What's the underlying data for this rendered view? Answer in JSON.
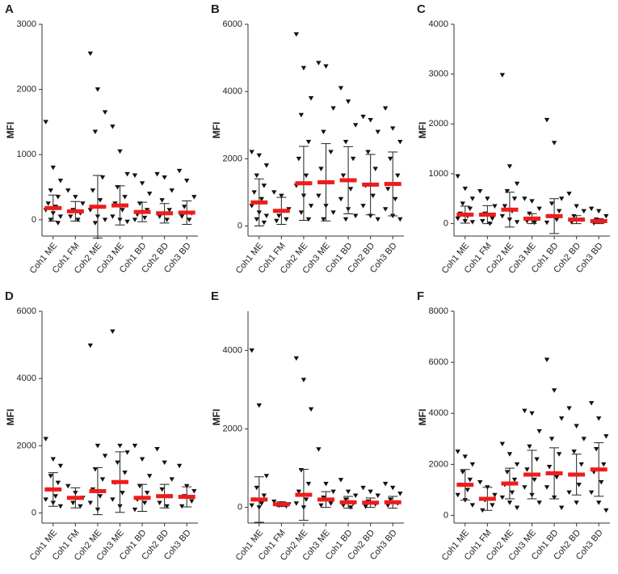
{
  "chart_data": [
    {
      "type": "dotplot",
      "label": "A",
      "ylabel": "MFI",
      "categories": [
        "Coh1 ME",
        "Coh1 FM",
        "Coh2 ME",
        "Coh3 ME",
        "Coh1 BD",
        "Coh2 BD",
        "Coh3 BD"
      ],
      "ylim": [
        -250,
        3000
      ],
      "yticks": [
        0,
        1000,
        2000,
        3000
      ],
      "color": "#111111",
      "mean_color": "#ee1c1c",
      "points": [
        [
          1500,
          800,
          600,
          450,
          350,
          250,
          200,
          150,
          100,
          50,
          0,
          -50
        ],
        [
          450,
          350,
          250,
          150,
          100,
          50,
          0
        ],
        [
          2550,
          2000,
          1650,
          1350,
          650,
          450,
          300,
          150,
          50,
          0,
          -50
        ],
        [
          1430,
          1050,
          700,
          500,
          350,
          250,
          150,
          50,
          0,
          -30
        ],
        [
          680,
          560,
          400,
          250,
          150,
          80,
          30,
          0
        ],
        [
          700,
          650,
          450,
          300,
          150,
          50,
          0
        ],
        [
          750,
          600,
          350,
          200,
          100,
          50,
          0
        ]
      ],
      "means": [
        180,
        130,
        200,
        220,
        120,
        100,
        110
      ],
      "sd": [
        200,
        150,
        480,
        300,
        150,
        150,
        180
      ]
    },
    {
      "type": "dotplot",
      "label": "B",
      "ylabel": "MFI",
      "categories": [
        "Coh1 ME",
        "Coh1 FM",
        "Coh2 ME",
        "Coh3 ME",
        "Coh1 BD",
        "Coh2 BD",
        "Coh3 BD"
      ],
      "ylim": [
        -300,
        6000
      ],
      "yticks": [
        0,
        2000,
        4000,
        6000
      ],
      "color": "#111111",
      "mean_color": "#ee1c1c",
      "points": [
        [
          2200,
          2100,
          1800,
          1500,
          1200,
          1000,
          800,
          600,
          400,
          300,
          200,
          100
        ],
        [
          1000,
          900,
          500,
          300,
          200,
          150
        ],
        [
          5700,
          4700,
          3800,
          3300,
          2500,
          2000,
          1500,
          1200,
          900,
          600,
          400,
          200
        ],
        [
          4850,
          4750,
          3500,
          2800,
          2200,
          1700,
          1300,
          900,
          600,
          400,
          200
        ],
        [
          4100,
          3700,
          3000,
          2500,
          2000,
          1500,
          1100,
          800,
          500,
          300,
          200
        ],
        [
          3250,
          3150,
          2800,
          2200,
          1700,
          1200,
          900,
          600,
          300,
          200
        ],
        [
          3500,
          2900,
          2500,
          2000,
          1500,
          1100,
          800,
          500,
          300,
          200
        ]
      ],
      "means": [
        700,
        450,
        1270,
        1300,
        1360,
        1230,
        1250
      ],
      "sd": [
        700,
        400,
        1100,
        1150,
        1000,
        900,
        950
      ]
    },
    {
      "type": "dotplot",
      "label": "C",
      "ylabel": "MFI",
      "categories": [
        "Coh1 ME",
        "Coh1 FM",
        "Coh2 ME",
        "Coh3 ME",
        "Coh1 BD",
        "Coh2 BD",
        "Coh3 BD"
      ],
      "ylim": [
        -250,
        4000
      ],
      "yticks": [
        0,
        1000,
        2000,
        3000,
        4000
      ],
      "color": "#111111",
      "mean_color": "#ee1c1c",
      "points": [
        [
          950,
          700,
          500,
          400,
          300,
          200,
          150,
          100,
          50,
          30
        ],
        [
          650,
          500,
          350,
          200,
          100,
          50,
          0
        ],
        [
          2980,
          1150,
          800,
          650,
          500,
          350,
          250,
          150,
          80,
          30
        ],
        [
          500,
          450,
          300,
          200,
          100,
          50,
          20
        ],
        [
          2080,
          1620,
          500,
          400,
          250,
          150,
          80,
          20
        ],
        [
          600,
          350,
          250,
          150,
          80,
          30
        ],
        [
          300,
          250,
          150,
          80,
          40,
          10
        ]
      ],
      "means": [
        180,
        180,
        280,
        100,
        150,
        80,
        50
      ],
      "sd": [
        170,
        180,
        350,
        100,
        350,
        80,
        50
      ]
    },
    {
      "type": "dotplot",
      "label": "D",
      "ylabel": "MFI",
      "categories": [
        "Coh1 ME",
        "Coh1 FM",
        "Coh2 ME",
        "Coh3 ME",
        "Coh1 BD",
        "Coh2 BD",
        "Coh3 BD"
      ],
      "ylim": [
        -300,
        6000
      ],
      "yticks": [
        0,
        2000,
        4000,
        6000
      ],
      "color": "#111111",
      "mean_color": "#ee1c1c",
      "points": [
        [
          2200,
          1600,
          1400,
          1100,
          900,
          700,
          500,
          400,
          300,
          200
        ],
        [
          800,
          600,
          450,
          300,
          200
        ],
        [
          4980,
          2000,
          1700,
          1300,
          1000,
          700,
          500,
          300,
          100
        ],
        [
          5400,
          2000,
          1800,
          1500,
          1200,
          900,
          600,
          400,
          200
        ],
        [
          2000,
          1600,
          1100,
          800,
          600,
          400,
          300,
          100
        ],
        [
          1900,
          1500,
          1000,
          700,
          500,
          300,
          200
        ],
        [
          1400,
          800,
          650,
          500,
          350,
          200
        ]
      ],
      "means": [
        700,
        450,
        650,
        920,
        450,
        500,
        480
      ],
      "sd": [
        500,
        300,
        700,
        900,
        400,
        350,
        300
      ]
    },
    {
      "type": "dotplot",
      "label": "E",
      "ylabel": "MFI",
      "categories": [
        "Coh1 ME",
        "Coh1 FM",
        "Coh2 ME",
        "Coh3 ME",
        "Coh1 BD",
        "Coh2 BD",
        "Coh3 BD"
      ],
      "ylim": [
        -400,
        5000
      ],
      "yticks": [
        0,
        2000,
        4000
      ],
      "color": "#111111",
      "mean_color": "#ee1c1c",
      "points": [
        [
          4000,
          2600,
          800,
          500,
          300,
          200,
          100,
          50,
          0
        ],
        [
          150,
          100,
          80,
          50,
          30
        ],
        [
          3800,
          3250,
          2500,
          950,
          600,
          400,
          200,
          100,
          0
        ],
        [
          1480,
          600,
          400,
          250,
          100,
          50
        ],
        [
          700,
          400,
          300,
          200,
          100,
          50,
          0
        ],
        [
          500,
          400,
          300,
          150,
          80,
          20
        ],
        [
          600,
          500,
          350,
          200,
          100,
          50
        ]
      ],
      "means": [
        200,
        80,
        320,
        200,
        130,
        120,
        130
      ],
      "sd": [
        580,
        60,
        650,
        200,
        150,
        120,
        150
      ]
    },
    {
      "type": "dotplot",
      "label": "F",
      "ylabel": "MFI",
      "categories": [
        "Coh1 ME",
        "Coh1 FM",
        "Coh2 ME",
        "Coh3 ME",
        "Coh1 BD",
        "Coh2 BD",
        "Coh3 BD"
      ],
      "ylim": [
        -300,
        8000
      ],
      "yticks": [
        0,
        2000,
        4000,
        6000,
        8000
      ],
      "color": "#111111",
      "mean_color": "#ee1c1c",
      "points": [
        [
          2500,
          2300,
          2000,
          1700,
          1400,
          1200,
          1000,
          800,
          600,
          400
        ],
        [
          1300,
          1100,
          800,
          600,
          400,
          200
        ],
        [
          2800,
          2400,
          2000,
          1700,
          1400,
          1200,
          900,
          700,
          500,
          300
        ],
        [
          4100,
          4000,
          3300,
          2700,
          2200,
          1800,
          1400,
          1100,
          800,
          500
        ],
        [
          6100,
          4900,
          3800,
          3000,
          2400,
          1900,
          1500,
          1100,
          700,
          300
        ],
        [
          4200,
          3500,
          3000,
          2500,
          2000,
          1600,
          1200,
          900,
          500
        ],
        [
          4400,
          3800,
          3100,
          2600,
          2000,
          1700,
          1300,
          900,
          500,
          200
        ]
      ],
      "means": [
        1200,
        650,
        1250,
        1600,
        1650,
        1600,
        1800
      ],
      "sd": [
        600,
        450,
        600,
        950,
        1000,
        800,
        1050
      ]
    }
  ]
}
